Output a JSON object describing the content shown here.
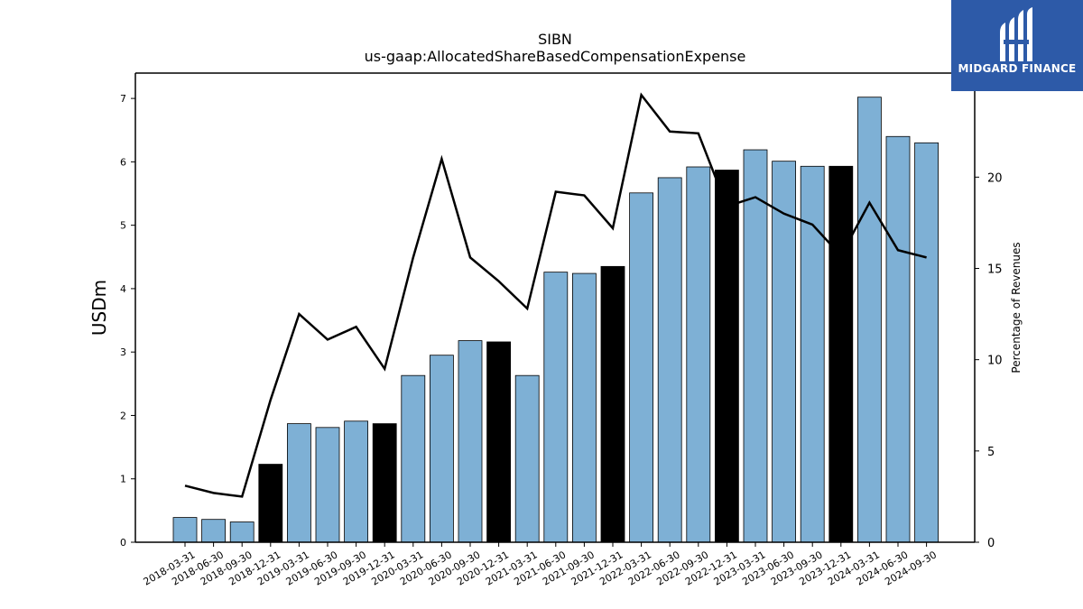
{
  "chart_data": {
    "type": "bar",
    "title": "SIBN",
    "subtitle": "us-gaap:AllocatedShareBasedCompensationExpense",
    "ylabel": "USDm",
    "y2label": "Percentage of Revenues",
    "ylim": [
      0,
      7.4
    ],
    "y2lim": [
      0,
      25.7
    ],
    "yticks": [
      0,
      1,
      2,
      3,
      4,
      5,
      6,
      7
    ],
    "y2ticks": [
      0,
      5,
      10,
      15,
      20
    ],
    "categories": [
      "2018-03-31",
      "2018-06-30",
      "2018-09-30",
      "2018-12-31",
      "2019-03-31",
      "2019-06-30",
      "2019-09-30",
      "2019-12-31",
      "2020-03-31",
      "2020-06-30",
      "2020-09-30",
      "2020-12-31",
      "2021-03-31",
      "2021-06-30",
      "2021-09-30",
      "2021-12-31",
      "2022-03-31",
      "2022-06-30",
      "2022-09-30",
      "2022-12-31",
      "2023-03-31",
      "2023-06-30",
      "2023-09-30",
      "2023-12-31",
      "2024-03-31",
      "2024-06-30",
      "2024-09-30"
    ],
    "series": [
      {
        "kind": "bar",
        "values": [
          0.39,
          0.36,
          0.32,
          1.23,
          1.87,
          1.81,
          1.91,
          1.87,
          2.63,
          2.95,
          3.18,
          3.16,
          2.63,
          4.26,
          4.24,
          4.35,
          5.51,
          5.75,
          5.92,
          5.87,
          6.19,
          6.01,
          5.93,
          5.93,
          7.02,
          6.4,
          6.3
        ],
        "colors": [
          "#7eb0d5",
          "#7eb0d5",
          "#7eb0d5",
          "#000000",
          "#7eb0d5",
          "#7eb0d5",
          "#7eb0d5",
          "#000000",
          "#7eb0d5",
          "#7eb0d5",
          "#7eb0d5",
          "#000000",
          "#7eb0d5",
          "#7eb0d5",
          "#7eb0d5",
          "#000000",
          "#7eb0d5",
          "#7eb0d5",
          "#7eb0d5",
          "#000000",
          "#7eb0d5",
          "#7eb0d5",
          "#7eb0d5",
          "#000000",
          "#7eb0d5",
          "#7eb0d5",
          "#7eb0d5"
        ]
      },
      {
        "kind": "line",
        "axis": "right",
        "color": "#000000",
        "values": [
          3.1,
          2.7,
          2.5,
          7.8,
          12.5,
          11.1,
          11.8,
          9.5,
          15.6,
          21.0,
          15.6,
          14.3,
          12.8,
          19.2,
          19.0,
          17.2,
          24.5,
          22.5,
          22.4,
          18.4,
          18.9,
          18.0,
          17.4,
          15.7,
          18.6,
          16.0,
          15.6
        ]
      }
    ],
    "grid": false,
    "legend": "none"
  },
  "logo": {
    "text": "MIDGARD FINANCE",
    "background": "#2d5aa8",
    "icon": "midgard-logo-icon"
  }
}
